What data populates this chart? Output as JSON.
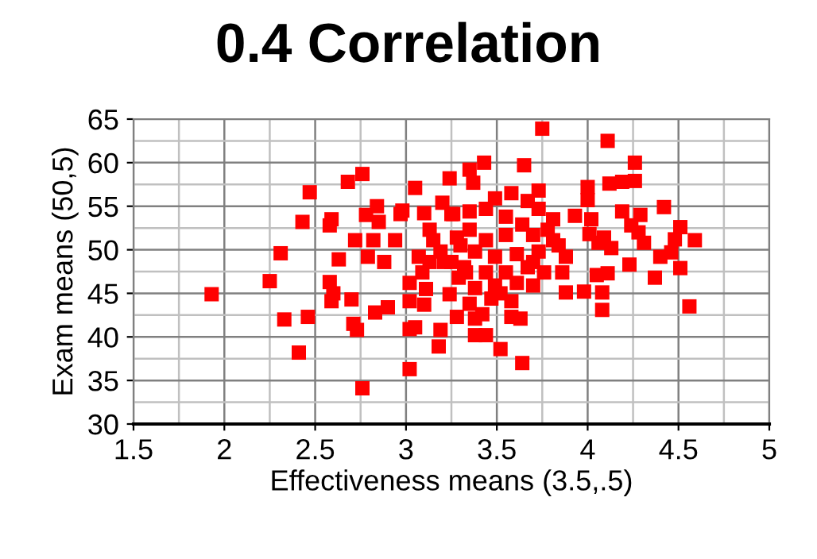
{
  "chart_data": {
    "type": "scatter",
    "title": "0.4 Correlation",
    "xlabel": "Effectiveness means (3.5,.5)",
    "ylabel": "Exam means (50,5)",
    "xlim": [
      1.5,
      5
    ],
    "xticks": [
      1.5,
      2,
      2.5,
      3,
      3.5,
      4,
      4.5,
      5
    ],
    "ylim": [
      30,
      65
    ],
    "yticks": [
      30,
      35,
      40,
      45,
      50,
      55,
      60,
      65
    ],
    "grid": true,
    "marker": "square",
    "series": [
      {
        "color": "#ff0000",
        "x": [
          1.93,
          2.25,
          2.31,
          2.33,
          2.41,
          2.46,
          2.43,
          2.47,
          2.59,
          2.58,
          2.63,
          2.58,
          2.6,
          2.59,
          2.7,
          2.68,
          2.76,
          2.72,
          2.71,
          2.73,
          2.76,
          2.79,
          2.82,
          2.78,
          2.84,
          2.85,
          2.83,
          2.9,
          2.94,
          2.97,
          2.98,
          2.88,
          3.05,
          3.02,
          3.02,
          3.05,
          3.02,
          3.02,
          3.1,
          3.1,
          3.11,
          3.13,
          3.19,
          3.18,
          3.24,
          3.24,
          3.2,
          3.25,
          3.28,
          3.07,
          3.13,
          3.19,
          3.25,
          3.3,
          3.33,
          3.28,
          3.21,
          3.09,
          3.15,
          3.75,
          4.11,
          4.26,
          3.65,
          3.35,
          3.43,
          3.37,
          4.0,
          4.12,
          4.19,
          4.26,
          4.0,
          3.73,
          4.42,
          4.19,
          4.29,
          3.93,
          4.02,
          3.26,
          3.35,
          4.51,
          4.48,
          4.59,
          4.24,
          4.28,
          4.31,
          4.4,
          4.46,
          4.01,
          4.09,
          4.06,
          4.13,
          4.23,
          4.51,
          4.37,
          4.05,
          4.11,
          4.08,
          3.98,
          3.88,
          4.08,
          4.56,
          3.84,
          3.88,
          3.86,
          3.7,
          3.63,
          3.52,
          3.64,
          3.38,
          3.44,
          3.38,
          3.58,
          3.49,
          3.58,
          3.67,
          3.73,
          3.81,
          3.44,
          3.55,
          3.64,
          3.35,
          3.44,
          3.55,
          3.7,
          3.78,
          3.38,
          3.49,
          3.61,
          3.73,
          3.32,
          3.44,
          3.55,
          3.67,
          3.76,
          3.38,
          3.49,
          3.61,
          3.35,
          3.47,
          3.58,
          3.29,
          3.42,
          3.52,
          3.7,
          3.81
        ],
        "values": [
          44.9,
          46.4,
          49.6,
          42.0,
          38.2,
          42.3,
          53.2,
          56.6,
          53.5,
          52.8,
          48.9,
          46.3,
          45.0,
          44.1,
          44.3,
          57.8,
          58.7,
          51.1,
          41.5,
          40.8,
          34.1,
          49.2,
          51.1,
          54.0,
          55.0,
          53.2,
          42.8,
          43.4,
          51.1,
          54.1,
          54.5,
          48.6,
          57.1,
          46.2,
          40.9,
          41.1,
          36.3,
          44.1,
          43.7,
          54.2,
          45.5,
          52.3,
          40.8,
          38.9,
          44.9,
          58.2,
          55.4,
          54.1,
          42.3,
          49.2,
          48.6,
          49.8,
          48.6,
          50.5,
          47.4,
          51.4,
          48.6,
          47.4,
          51.1,
          63.9,
          62.5,
          60.0,
          59.7,
          59.2,
          60.0,
          57.7,
          57.2,
          57.6,
          57.8,
          57.9,
          55.7,
          56.8,
          54.9,
          54.4,
          54.0,
          53.9,
          53.5,
          54.1,
          54.4,
          52.6,
          51.2,
          51.1,
          52.8,
          52.0,
          50.8,
          49.2,
          49.7,
          51.8,
          51.4,
          50.8,
          50.2,
          48.3,
          47.9,
          46.8,
          47.1,
          47.3,
          45.1,
          45.2,
          45.1,
          43.1,
          43.5,
          50.5,
          49.2,
          47.4,
          45.9,
          42.1,
          38.6,
          37.0,
          40.2,
          40.2,
          42.1,
          42.3,
          55.9,
          56.5,
          55.6,
          54.7,
          53.5,
          54.7,
          53.8,
          52.9,
          52.3,
          51.1,
          51.7,
          51.7,
          52.3,
          49.8,
          49.2,
          49.5,
          49.8,
          48.0,
          47.4,
          47.4,
          48.0,
          47.4,
          45.6,
          45.9,
          46.2,
          43.8,
          44.4,
          44.1,
          46.8,
          42.6,
          45.0,
          48.6,
          51.1
        ]
      }
    ]
  }
}
